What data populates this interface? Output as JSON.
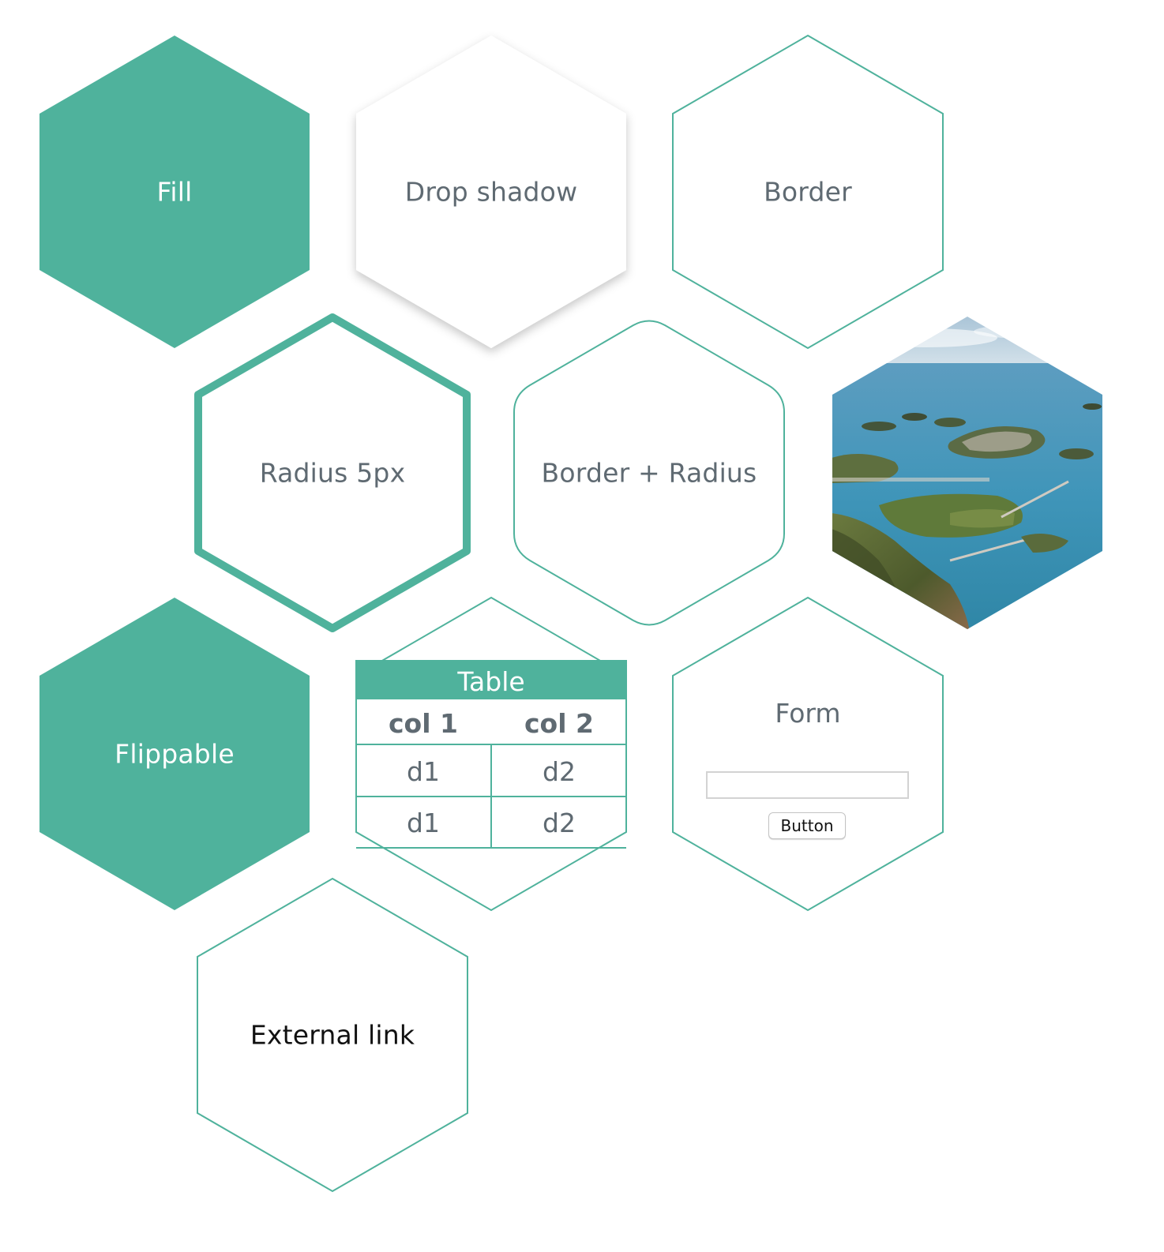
{
  "colors": {
    "accent": "#4fb29c",
    "text": "#5f6a72",
    "white": "#ffffff"
  },
  "hexes": {
    "fill": {
      "label": "Fill"
    },
    "drop_shadow": {
      "label": "Drop shadow"
    },
    "border": {
      "label": "Border"
    },
    "radius": {
      "label": "Radius 5px"
    },
    "border_radius": {
      "label": "Border + Radius"
    },
    "image": {
      "subject": "aerial coastal islands photograph"
    },
    "flippable": {
      "label": "Flippable"
    },
    "table": {
      "title": "Table",
      "columns": [
        "col 1",
        "col 2"
      ],
      "rows": [
        [
          "d1",
          "d2"
        ],
        [
          "d1",
          "d2"
        ]
      ]
    },
    "form": {
      "title": "Form",
      "input_value": "",
      "input_placeholder": "",
      "button_label": "Button"
    },
    "external_link": {
      "label": "External link"
    }
  }
}
